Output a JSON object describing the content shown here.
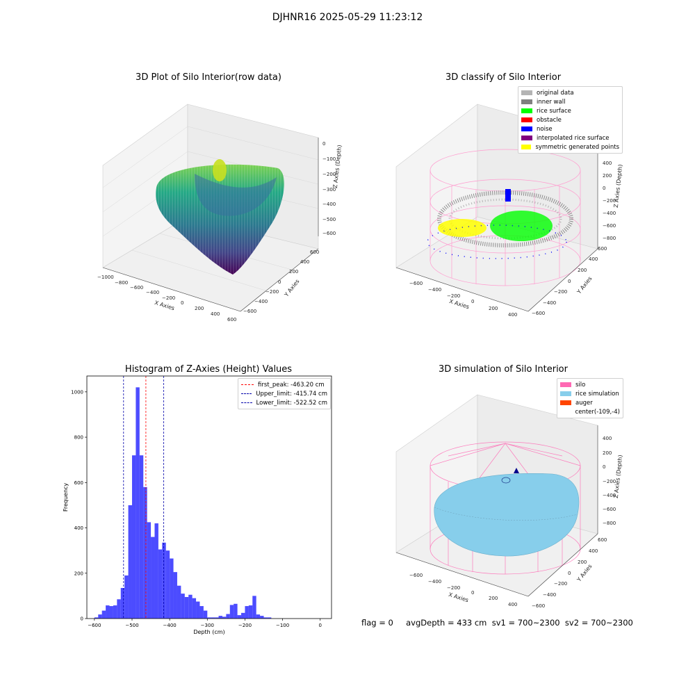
{
  "figure": {
    "title": "DJHNR16 2025-05-29 11:23:12",
    "footer": "flag = 0     avgDepth = 433 cm  sv1 = 700~2300  sv2 = 700~2300"
  },
  "panels": {
    "raw": {
      "title": "3D Plot of Silo Interior(row data)",
      "xlabel": "X Axies",
      "ylabel": "Y Axies",
      "zlabel": "Z Axies (Depth)",
      "xticks": [
        "−1000",
        "−800",
        "−600",
        "−400",
        "−200",
        "0",
        "200",
        "400",
        "600"
      ],
      "yticks": [
        "−600",
        "−400",
        "−200",
        "0",
        "200",
        "400",
        "600"
      ],
      "zticks": [
        "0",
        "−100",
        "−200",
        "−300",
        "−400",
        "−500",
        "−600"
      ]
    },
    "classify": {
      "title": "3D classify of Silo Interior",
      "xlabel": "X Axies",
      "ylabel": "Y Axies",
      "zlabel": "Z Axies (Depth)",
      "xticks": [
        "−600",
        "−400",
        "−200",
        "0",
        "200",
        "400"
      ],
      "yticks": [
        "−600",
        "−400",
        "−200",
        "0",
        "200",
        "400",
        "600"
      ],
      "zticks": [
        "400",
        "200",
        "0",
        "−200",
        "−400",
        "−600",
        "−800"
      ],
      "legend": [
        {
          "label": "original data",
          "color": "#b4b4b4"
        },
        {
          "label": "inner wall",
          "color": "#808080"
        },
        {
          "label": "rice surface",
          "color": "#00ff00"
        },
        {
          "label": "obstacle",
          "color": "#ff0000"
        },
        {
          "label": "noise",
          "color": "#0000ff"
        },
        {
          "label": "interpolated rice surface",
          "color": "#800080"
        },
        {
          "label": "symmetric generated points",
          "color": "#ffff00"
        }
      ]
    },
    "simulation": {
      "title": "3D simulation of Silo Interior",
      "xlabel": "X Axies",
      "ylabel": "Y Axies",
      "zlabel": "Z Axies (Depth)",
      "xticks": [
        "−600",
        "−400",
        "−200",
        "0",
        "200",
        "400"
      ],
      "yticks": [
        "−600",
        "−400",
        "−200",
        "0",
        "200",
        "400",
        "600"
      ],
      "zticks": [
        "400",
        "200",
        "0",
        "−200",
        "−400",
        "−600",
        "−800"
      ],
      "legend": [
        {
          "label": "silo",
          "color": "#ff69b4"
        },
        {
          "label": "rice simulation",
          "color": "#87ceeb"
        },
        {
          "label": "auger",
          "color": "#ff4500"
        },
        {
          "label": "center(-109,-4)",
          "color": ""
        }
      ]
    }
  },
  "chart_data": {
    "type": "bar",
    "title": "Histogram of Z-Axies (Height) Values",
    "xlabel": "Depth (cm)",
    "ylabel": "Frequency",
    "xlim": [
      -620,
      30
    ],
    "ylim": [
      0,
      1070
    ],
    "xticks": [
      -600,
      -500,
      -400,
      -300,
      -200,
      -100,
      0
    ],
    "yticks": [
      0,
      200,
      400,
      600,
      800,
      1000
    ],
    "bar_color": "#0000ff",
    "bin_width": 10,
    "bins": [
      [
        -600,
        5
      ],
      [
        -590,
        18
      ],
      [
        -580,
        35
      ],
      [
        -570,
        58
      ],
      [
        -560,
        55
      ],
      [
        -550,
        58
      ],
      [
        -540,
        85
      ],
      [
        -530,
        135
      ],
      [
        -520,
        190
      ],
      [
        -510,
        500
      ],
      [
        -500,
        720
      ],
      [
        -490,
        1020
      ],
      [
        -480,
        720
      ],
      [
        -470,
        580
      ],
      [
        -460,
        425
      ],
      [
        -450,
        360
      ],
      [
        -440,
        420
      ],
      [
        -430,
        305
      ],
      [
        -420,
        335
      ],
      [
        -410,
        300
      ],
      [
        -400,
        265
      ],
      [
        -390,
        205
      ],
      [
        -380,
        145
      ],
      [
        -370,
        110
      ],
      [
        -360,
        95
      ],
      [
        -350,
        105
      ],
      [
        -340,
        90
      ],
      [
        -330,
        75
      ],
      [
        -320,
        55
      ],
      [
        -310,
        35
      ],
      [
        -300,
        5
      ],
      [
        -290,
        5
      ],
      [
        -280,
        5
      ],
      [
        -270,
        12
      ],
      [
        -260,
        8
      ],
      [
        -250,
        20
      ],
      [
        -240,
        60
      ],
      [
        -230,
        65
      ],
      [
        -220,
        15
      ],
      [
        -210,
        25
      ],
      [
        -200,
        55
      ],
      [
        -190,
        58
      ],
      [
        -180,
        100
      ],
      [
        -170,
        18
      ],
      [
        -160,
        12
      ],
      [
        -150,
        5
      ],
      [
        -140,
        5
      ]
    ],
    "vlines": [
      {
        "label": "first_peak: -463.20 cm",
        "x": -463.2,
        "color": "#ff0000"
      },
      {
        "label": "Upper_limit: -415.74 cm",
        "x": -415.74,
        "color": "#0000aa"
      },
      {
        "label": "Lower_limit: -522.52 cm",
        "x": -522.52,
        "color": "#0000aa"
      }
    ],
    "legend_position": "top-right",
    "grid": false
  }
}
